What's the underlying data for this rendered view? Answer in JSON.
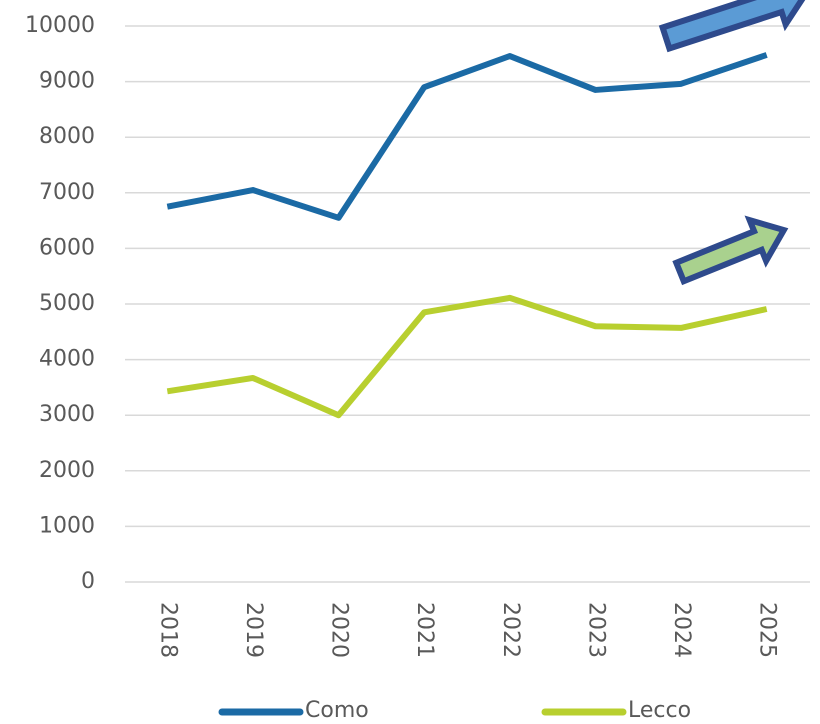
{
  "chart_data": {
    "type": "line",
    "categories": [
      "2018",
      "2019",
      "2020",
      "2021",
      "2022",
      "2023",
      "2024",
      "2025"
    ],
    "series": [
      {
        "name": "Como",
        "color": "#1b6aa5",
        "values": [
          6750,
          7050,
          6550,
          8900,
          9460,
          8850,
          8960,
          9480
        ]
      },
      {
        "name": "Lecco",
        "color": "#b8cf2f",
        "values": [
          3430,
          3670,
          3000,
          4850,
          5110,
          4600,
          4570,
          4910
        ]
      }
    ],
    "ylim": [
      0,
      10000
    ],
    "yticks": [
      0,
      1000,
      2000,
      3000,
      4000,
      5000,
      6000,
      7000,
      8000,
      9000,
      10000
    ],
    "grid": true
  }
}
